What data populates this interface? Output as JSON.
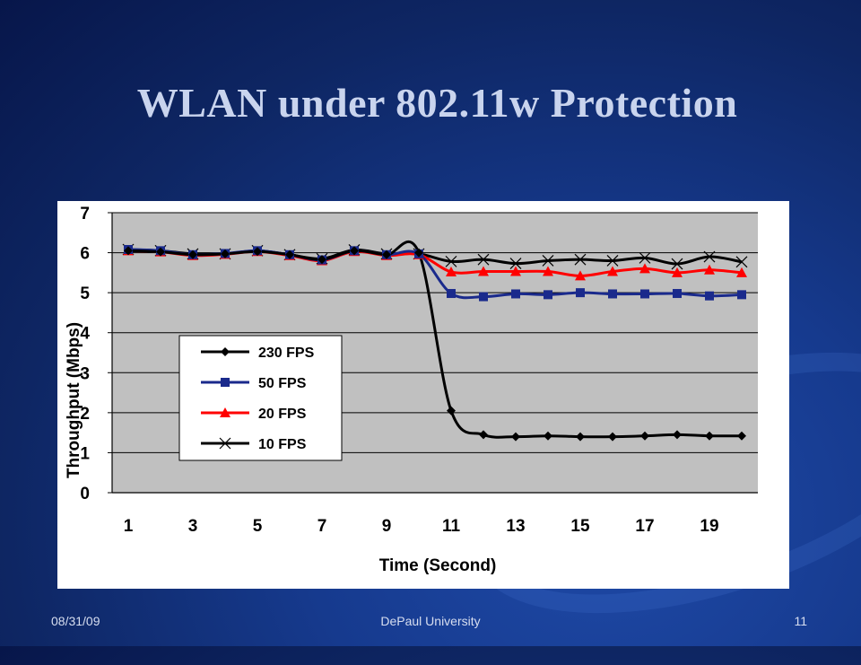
{
  "slide": {
    "title": "WLAN under 802.11w Protection",
    "footer_date": "08/31/09",
    "footer_center": "DePaul University",
    "page_number": "11"
  },
  "chart_data": {
    "type": "line",
    "xlabel": "Time (Second)",
    "ylabel": "Throughput (Mbps)",
    "x": [
      1,
      2,
      3,
      4,
      5,
      6,
      7,
      8,
      9,
      10,
      11,
      12,
      13,
      14,
      15,
      16,
      17,
      18,
      19,
      20
    ],
    "xticks": [
      1,
      3,
      5,
      7,
      9,
      11,
      13,
      15,
      17,
      19
    ],
    "ylim": [
      0,
      7
    ],
    "yticks": [
      0,
      1,
      2,
      3,
      4,
      5,
      6,
      7
    ],
    "grid": true,
    "legend_position": "left-center",
    "plot_background": "#c0c0c0",
    "series": [
      {
        "name": "230 FPS",
        "color": "#000000",
        "marker": "diamond",
        "values": [
          6.05,
          6.02,
          5.95,
          5.97,
          6.03,
          5.95,
          5.83,
          6.05,
          5.95,
          6.0,
          2.05,
          1.45,
          1.4,
          1.42,
          1.4,
          1.4,
          1.42,
          1.45,
          1.42,
          1.42
        ]
      },
      {
        "name": "50 FPS",
        "color": "#1a2a8c",
        "marker": "square",
        "values": [
          6.08,
          6.05,
          5.95,
          5.98,
          6.05,
          5.95,
          5.82,
          6.05,
          5.95,
          5.97,
          4.98,
          4.9,
          4.97,
          4.95,
          5.0,
          4.97,
          4.97,
          4.98,
          4.92,
          4.95
        ]
      },
      {
        "name": "20 FPS",
        "color": "#ff0000",
        "marker": "triangle",
        "values": [
          6.05,
          6.02,
          5.93,
          5.96,
          6.03,
          5.93,
          5.8,
          6.03,
          5.93,
          5.95,
          5.52,
          5.53,
          5.53,
          5.53,
          5.42,
          5.53,
          5.6,
          5.5,
          5.57,
          5.5
        ]
      },
      {
        "name": "10 FPS",
        "color": "#000000",
        "marker": "x",
        "values": [
          6.08,
          6.05,
          5.97,
          5.97,
          6.05,
          5.95,
          5.85,
          6.07,
          5.97,
          5.97,
          5.78,
          5.83,
          5.73,
          5.8,
          5.83,
          5.8,
          5.87,
          5.72,
          5.9,
          5.77
        ]
      }
    ]
  }
}
